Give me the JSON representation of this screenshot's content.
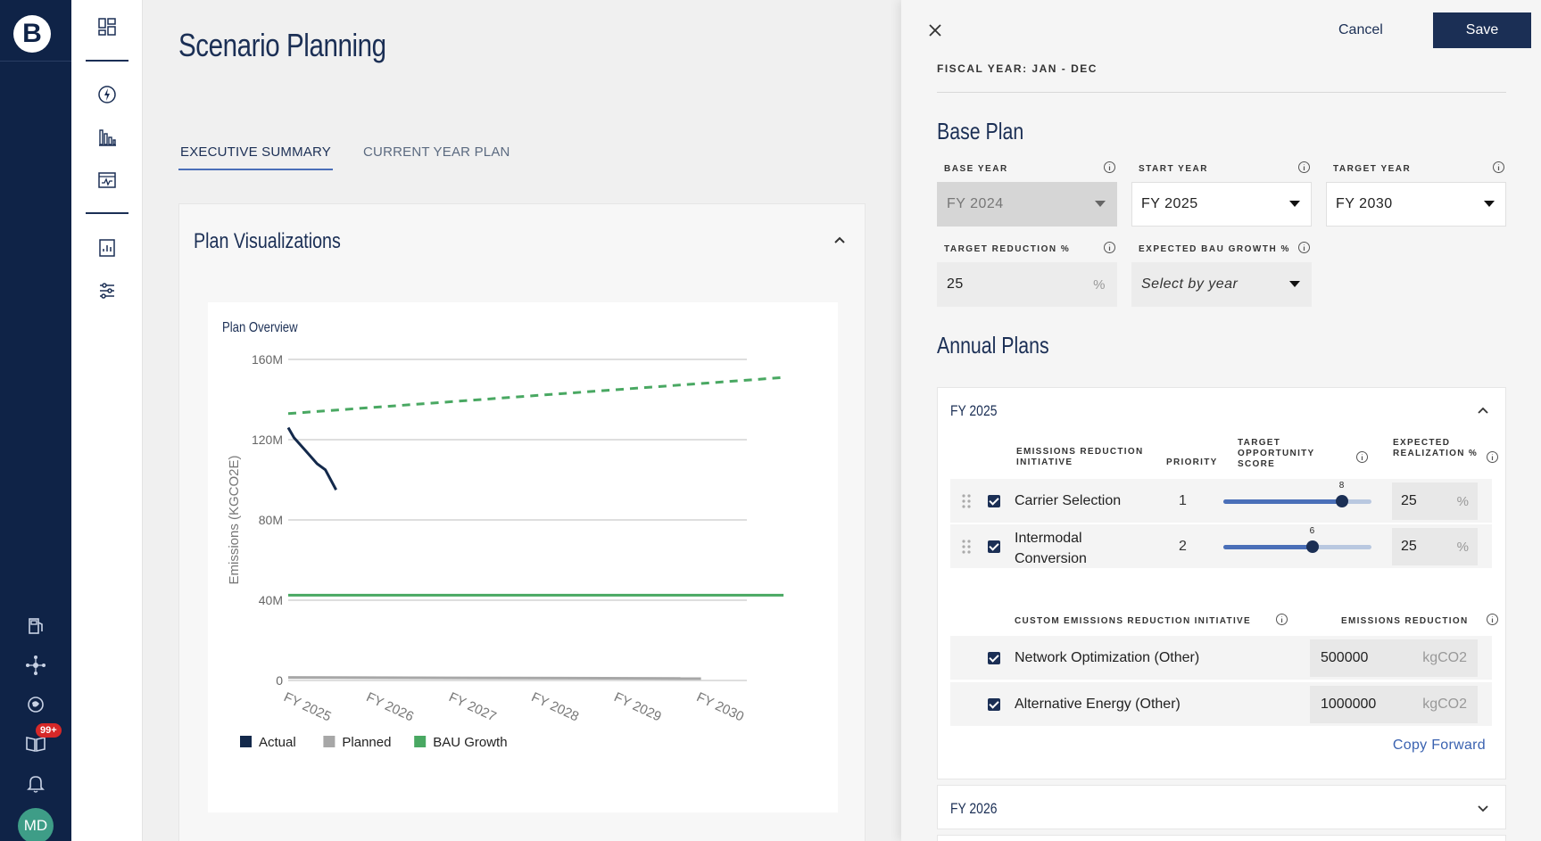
{
  "rail": {
    "logo_letter": "B",
    "notifications_badge": "99+",
    "avatar_initials": "MD"
  },
  "page": {
    "title": "Scenario Planning",
    "tabs": [
      {
        "label": "EXECUTIVE SUMMARY",
        "active": true
      },
      {
        "label": "CURRENT YEAR PLAN",
        "active": false
      }
    ]
  },
  "visualizations": {
    "title": "Plan Visualizations"
  },
  "chart_data": {
    "type": "line",
    "title": "Plan Overview",
    "xlabel": "",
    "ylabel": "Emissions (KGCO2E)",
    "categories": [
      "FY 2025",
      "FY 2026",
      "FY 2027",
      "FY 2028",
      "FY 2029",
      "FY 2030"
    ],
    "y_ticks": [
      "160M",
      "120M",
      "80M",
      "40M",
      "0"
    ],
    "ylim": [
      0,
      160000000
    ],
    "grid": true,
    "legend": "bottom-left",
    "series": [
      {
        "name": "Actual",
        "color": "#13294b",
        "style": "solid",
        "x": [
          0,
          0.07,
          0.2,
          0.35,
          0.45,
          0.58
        ],
        "y": [
          126000000,
          121000000,
          115000000,
          108000000,
          105000000,
          95000000
        ]
      },
      {
        "name": "Planned",
        "color": "#a7a7a7",
        "style": "solid",
        "x": [
          0,
          5
        ],
        "y": [
          1500000,
          1000000
        ]
      },
      {
        "name": "BAU Growth",
        "color": "#49a862",
        "style": "solid",
        "x": [
          0,
          6
        ],
        "y": [
          42500000,
          42500000
        ]
      },
      {
        "name": "BAU Growth",
        "color": "#49a862",
        "style": "dashed",
        "x": [
          0,
          6
        ],
        "y": [
          133000000,
          151000000
        ]
      }
    ]
  },
  "drawer": {
    "cancel_label": "Cancel",
    "save_label": "Save",
    "fiscal_year": "FISCAL YEAR: JAN - DEC",
    "base_plan": {
      "title": "Base Plan",
      "base_year": {
        "label": "BASE YEAR",
        "value": "FY 2024"
      },
      "start_year": {
        "label": "START YEAR",
        "value": "FY 2025"
      },
      "target_year": {
        "label": "TARGET YEAR",
        "value": "FY 2030"
      },
      "target_reduction": {
        "label": "TARGET REDUCTION %",
        "value": "25",
        "suffix": "%"
      },
      "bau_growth": {
        "label": "EXPECTED BAU GROWTH %",
        "value": "Select by year"
      }
    },
    "annual_plans": {
      "title": "Annual Plans",
      "fy2025": {
        "title": "FY 2025",
        "headers": {
          "initiative": "EMISSIONS REDUCTION INITIATIVE",
          "priority": "PRIORITY",
          "score": "TARGET OPPORTUNITY SCORE",
          "realization": "EXPECTED REALIZATION %"
        },
        "initiatives": [
          {
            "name": "Carrier Selection",
            "priority": "1",
            "score": 8,
            "score_label": "8",
            "realization": "25",
            "suffix": "%"
          },
          {
            "name": "Intermodal Conversion",
            "name_line1": "Intermodal",
            "name_line2": "Conversion",
            "priority": "2",
            "score": 6,
            "score_label": "6",
            "realization": "25",
            "suffix": "%"
          }
        ],
        "custom_headers": {
          "initiative": "CUSTOM EMISSIONS REDUCTION INITIATIVE",
          "reduction": "EMISSIONS REDUCTION"
        },
        "custom": [
          {
            "name": "Network Optimization (Other)",
            "value": "500000",
            "unit": "kgCO2"
          },
          {
            "name": "Alternative Energy (Other)",
            "value": "1000000",
            "unit": "kgCO2"
          }
        ],
        "copy_forward": "Copy Forward"
      },
      "fy2026": {
        "title": "FY 2026"
      }
    }
  }
}
